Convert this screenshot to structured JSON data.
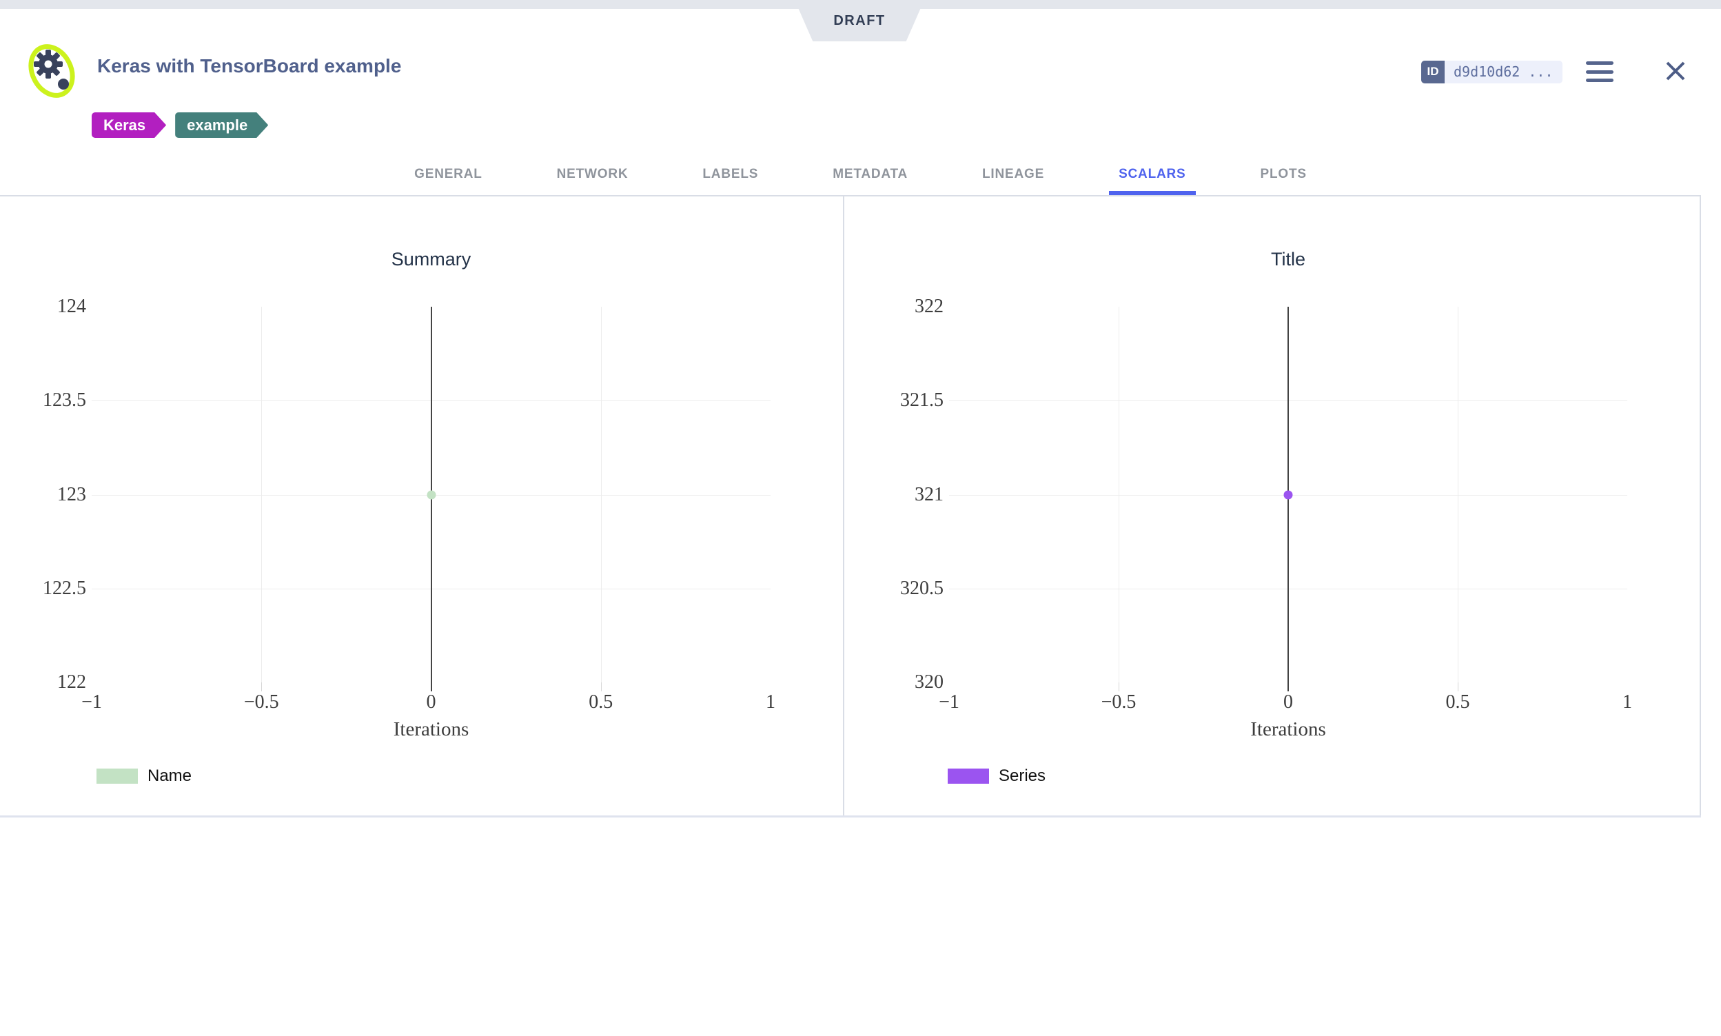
{
  "window": {
    "ribbon": "DRAFT"
  },
  "header": {
    "title": "Keras with TensorBoard example",
    "tags": [
      {
        "label": "Keras",
        "color": "#b21fc0"
      },
      {
        "label": "example",
        "color": "#44807c"
      }
    ],
    "id_badge": {
      "label": "ID",
      "value": "d9d10d62 ..."
    }
  },
  "tabs": [
    {
      "label": "GENERAL",
      "active": false
    },
    {
      "label": "NETWORK",
      "active": false
    },
    {
      "label": "LABELS",
      "active": false
    },
    {
      "label": "METADATA",
      "active": false
    },
    {
      "label": "LINEAGE",
      "active": false
    },
    {
      "label": "SCALARS",
      "active": true
    },
    {
      "label": "PLOTS",
      "active": false
    }
  ],
  "colors": {
    "topbar": "#e3e6ec",
    "active_tab": "#4f63ee",
    "tag_keras": "#b21fc0",
    "tag_example": "#44807c",
    "series_green": "#c3e2c4",
    "series_purple": "#9b54f0"
  },
  "chart_data": [
    {
      "type": "scatter",
      "title": "Summary",
      "xlabel": "Iterations",
      "x_range": [
        -1,
        1
      ],
      "y_range": [
        122,
        124
      ],
      "x_tick_values": [
        -1,
        -0.5,
        0,
        0.5,
        1
      ],
      "x_tick_labels": [
        "−1",
        "−0.5",
        "0",
        "0.5",
        "1"
      ],
      "y_tick_values": [
        122,
        122.5,
        123,
        123.5,
        124
      ],
      "y_tick_labels": [
        "122",
        "122.5",
        "123",
        "123.5",
        "124"
      ],
      "grid": true,
      "zero_line": true,
      "legend_position": "bottom-left",
      "series": [
        {
          "name": "Name",
          "color": "#c3e2c4",
          "points": [
            {
              "x": 0,
              "y": 123
            }
          ]
        }
      ]
    },
    {
      "type": "scatter",
      "title": "Title",
      "xlabel": "Iterations",
      "x_range": [
        -1,
        1
      ],
      "y_range": [
        320,
        322
      ],
      "x_tick_values": [
        -1,
        -0.5,
        0,
        0.5,
        1
      ],
      "x_tick_labels": [
        "−1",
        "−0.5",
        "0",
        "0.5",
        "1"
      ],
      "y_tick_values": [
        320,
        320.5,
        321,
        321.5,
        322
      ],
      "y_tick_labels": [
        "320",
        "320.5",
        "321",
        "321.5",
        "322"
      ],
      "grid": true,
      "zero_line": true,
      "legend_position": "bottom-left",
      "series": [
        {
          "name": "Series",
          "color": "#9b54f0",
          "points": [
            {
              "x": 0,
              "y": 321
            }
          ]
        }
      ]
    }
  ]
}
